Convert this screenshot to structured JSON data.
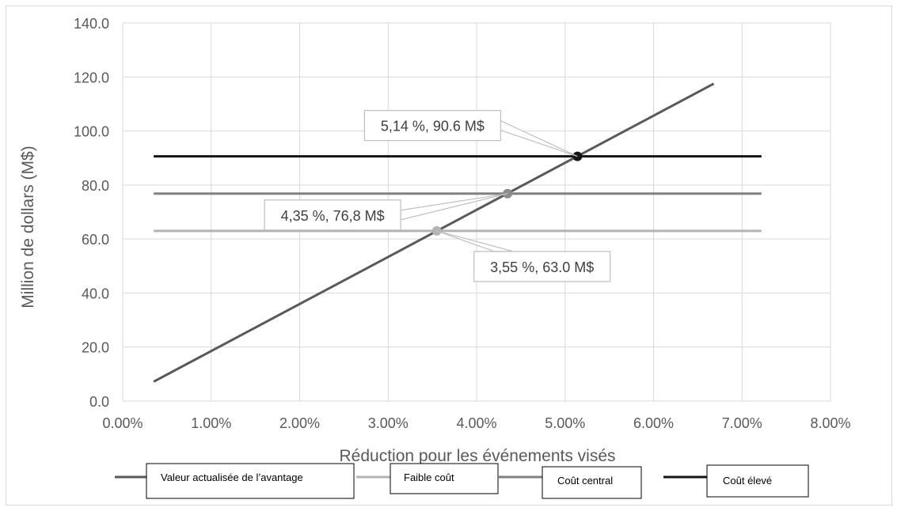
{
  "chart_data": {
    "type": "line",
    "title": "",
    "xlabel": "Réduction pour les événements visés",
    "ylabel": "Million de dollars (M$)",
    "xlim": [
      0.0,
      8.0
    ],
    "ylim": [
      0,
      140
    ],
    "x_ticks": [
      0,
      1,
      2,
      3,
      4,
      5,
      6,
      7,
      8
    ],
    "x_tick_labels": [
      "0.00%",
      "1.00%",
      "2.00%",
      "3.00%",
      "4.00%",
      "5.00%",
      "6.00%",
      "7.00%",
      "8.00%"
    ],
    "y_ticks": [
      0,
      20,
      40,
      60,
      80,
      100,
      120,
      140
    ],
    "y_tick_labels": [
      "0.0",
      "20.0",
      "40.0",
      "60.0",
      "80.0",
      "100.0",
      "120.0",
      "140.0"
    ],
    "grid": true,
    "legend_position": "bottom",
    "series": [
      {
        "name": "Valeur actualisée de l’avantage",
        "x": [
          0.35,
          6.68
        ],
        "y": [
          7.2,
          117.5
        ],
        "color": "#595959"
      },
      {
        "name": "Faible coût",
        "x": [
          0.35,
          7.22
        ],
        "y": [
          63.0,
          63.0
        ],
        "color": "#b3b3b3"
      },
      {
        "name": "Coût central",
        "x": [
          0.35,
          7.22
        ],
        "y": [
          76.8,
          76.8
        ],
        "color": "#808080"
      },
      {
        "name": "Coût élevé",
        "x": [
          0.35,
          7.22
        ],
        "y": [
          90.6,
          90.6
        ],
        "color": "#141414"
      }
    ],
    "points": [
      {
        "x": 3.55,
        "y": 63.0,
        "color": "#b3b3b3"
      },
      {
        "x": 4.35,
        "y": 76.8,
        "color": "#8c8c8c"
      },
      {
        "x": 5.14,
        "y": 90.6,
        "color": "#141414"
      }
    ],
    "annotations": [
      {
        "text": "5,14 %, 90.6 M$",
        "x": 5.14,
        "y": 90.6,
        "placement": "upper-left"
      },
      {
        "text": "4,35 %, 76,8 M$",
        "x": 4.35,
        "y": 76.8,
        "placement": "lower-left"
      },
      {
        "text": "3,55 %, 63.0 M$",
        "x": 3.55,
        "y": 63.0,
        "placement": "lower-right"
      }
    ]
  }
}
